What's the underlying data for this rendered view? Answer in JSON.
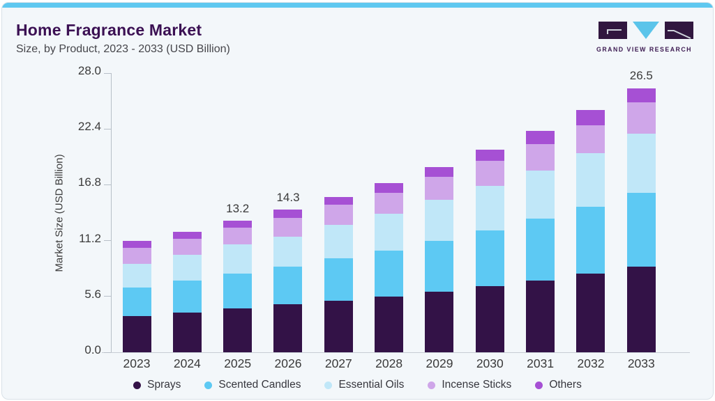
{
  "header": {
    "title": "Home Fragrance Market",
    "subtitle": "Size, by Product, 2023 - 2033 (USD Billion)"
  },
  "logo": {
    "text": "GRAND VIEW RESEARCH"
  },
  "colors": {
    "accent_bar": "#5fc8f0",
    "card_bg": "#f3f7fa",
    "title_text": "#3b1053",
    "logo_dark": "#31173f",
    "logo_blue": "#5bc4ea",
    "axis_line": "#b7bfc8",
    "sprays": "#331247",
    "scented_candles": "#5dc9f3",
    "essential_oils": "#c0e7f8",
    "incense_sticks": "#cfa6e9",
    "others": "#a650d4"
  },
  "chart_data": {
    "type": "bar",
    "stacked": true,
    "title": "Home Fragrance Market",
    "subtitle": "Size, by Product, 2023 - 2033 (USD Billion)",
    "xlabel": "",
    "ylabel": "Market Size (USD Billion)",
    "ylim": [
      0,
      28
    ],
    "grid": false,
    "legend_position": "bottom",
    "y_ticks": [
      {
        "value": 0,
        "label": "0.0"
      },
      {
        "value": 5.6,
        "label": "5.6"
      },
      {
        "value": 11.2,
        "label": "11.2"
      },
      {
        "value": 16.8,
        "label": "16.8"
      },
      {
        "value": 22.4,
        "label": "22.4"
      },
      {
        "value": 28.0,
        "label": "28.0"
      }
    ],
    "categories": [
      "2023",
      "2024",
      "2025",
      "2026",
      "2027",
      "2028",
      "2029",
      "2030",
      "2031",
      "2032",
      "2033"
    ],
    "series": [
      {
        "name": "Sprays",
        "color": "#331247",
        "values": [
          3.6,
          4.0,
          4.4,
          4.8,
          5.2,
          5.6,
          6.1,
          6.6,
          7.2,
          7.9,
          8.6
        ]
      },
      {
        "name": "Scented Candles",
        "color": "#5dc9f3",
        "values": [
          2.9,
          3.2,
          3.5,
          3.8,
          4.2,
          4.6,
          5.1,
          5.6,
          6.2,
          6.7,
          7.4
        ]
      },
      {
        "name": "Essential Oils",
        "color": "#c0e7f8",
        "values": [
          2.4,
          2.6,
          2.9,
          3.0,
          3.4,
          3.7,
          4.1,
          4.5,
          4.8,
          5.4,
          5.9
        ]
      },
      {
        "name": "Incense Sticks",
        "color": "#cfa6e9",
        "values": [
          1.6,
          1.6,
          1.7,
          1.9,
          2.0,
          2.1,
          2.3,
          2.5,
          2.7,
          2.8,
          3.2
        ]
      },
      {
        "name": "Others",
        "color": "#a650d4",
        "values": [
          0.7,
          0.7,
          0.7,
          0.8,
          0.8,
          1.0,
          1.0,
          1.1,
          1.3,
          1.5,
          1.4
        ]
      }
    ],
    "totals": [
      11.2,
      12.1,
      13.2,
      14.3,
      15.6,
      17.0,
      18.6,
      20.3,
      22.2,
      24.3,
      26.5
    ],
    "annotations": [
      {
        "category": "2025",
        "label": "13.2"
      },
      {
        "category": "2026",
        "label": "14.3"
      },
      {
        "category": "2033",
        "label": "26.5"
      }
    ]
  }
}
